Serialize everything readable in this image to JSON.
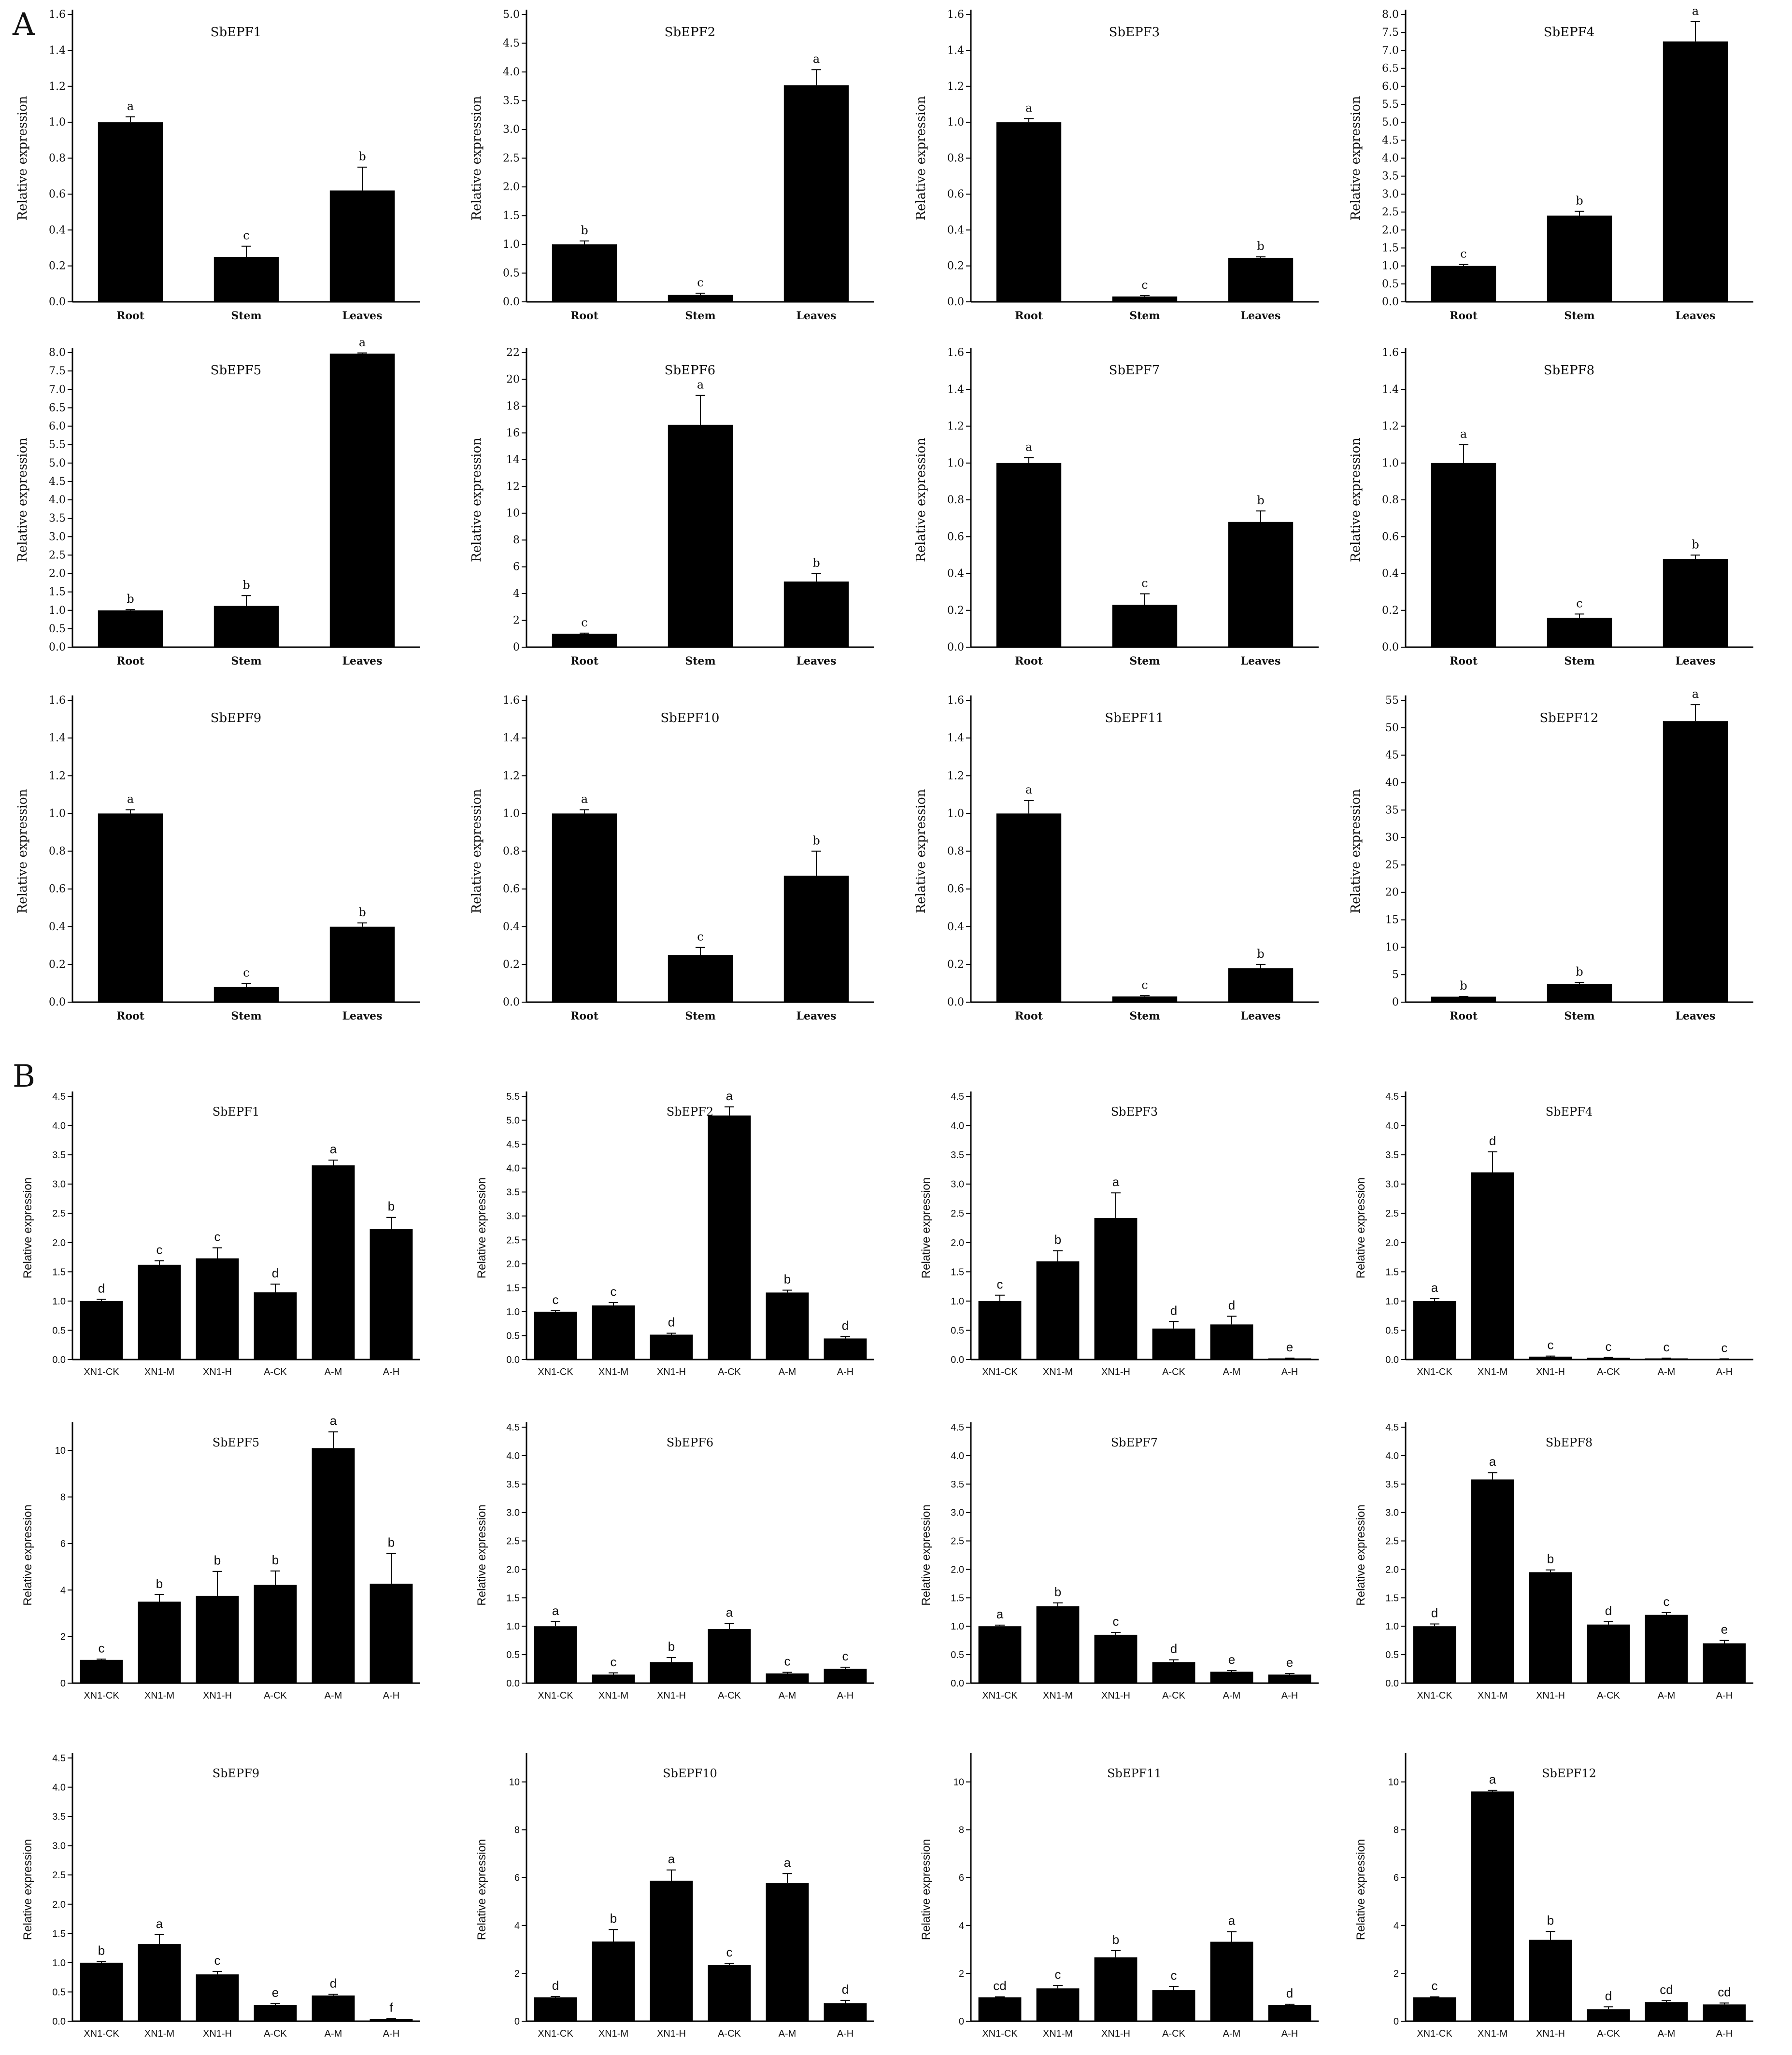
{
  "panels": {
    "a": "A",
    "b": "B"
  },
  "colors": {
    "bar": "#000000",
    "axis": "#000000",
    "text": "#111111"
  },
  "chart_data": [
    {
      "type": "bar",
      "title": "SbEPF1",
      "ylabel": "Relative expression",
      "categories": [
        "Root",
        "Stem",
        "Leaves"
      ],
      "values": [
        1.0,
        0.25,
        0.62
      ],
      "errors": [
        0.03,
        0.06,
        0.13
      ],
      "labels": [
        "a",
        "c",
        "b"
      ],
      "ylim": [
        0,
        1.6
      ],
      "yticks": [
        "0.0",
        "0.2",
        "0.4",
        "0.6",
        "0.8",
        "1.0",
        "1.2",
        "1.4",
        "1.6"
      ]
    },
    {
      "type": "bar",
      "title": "SbEPF2",
      "ylabel": "Relative expression",
      "categories": [
        "Root",
        "Stem",
        "Leaves"
      ],
      "values": [
        1.0,
        0.12,
        3.77
      ],
      "errors": [
        0.06,
        0.03,
        0.27
      ],
      "labels": [
        "b",
        "c",
        "a"
      ],
      "ylim": [
        0,
        5.0
      ],
      "yticks": [
        "0.0",
        "0.5",
        "1.0",
        "1.5",
        "2.0",
        "2.5",
        "3.0",
        "3.5",
        "4.0",
        "4.5",
        "5.0"
      ]
    },
    {
      "type": "bar",
      "title": "SbEPF3",
      "ylabel": "Relative expression",
      "categories": [
        "Root",
        "Stem",
        "Leaves"
      ],
      "values": [
        1.0,
        0.03,
        0.245
      ],
      "errors": [
        0.02,
        0.005,
        0.006
      ],
      "labels": [
        "a",
        "c",
        "b"
      ],
      "ylim": [
        0,
        1.6
      ],
      "yticks": [
        "0.0",
        "0.2",
        "0.4",
        "0.6",
        "0.8",
        "1.0",
        "1.2",
        "1.4",
        "1.6"
      ]
    },
    {
      "type": "bar",
      "title": "SbEPF4",
      "ylabel": "Relative expression",
      "categories": [
        "Root",
        "Stem",
        "Leaves"
      ],
      "values": [
        1.0,
        2.4,
        7.25
      ],
      "errors": [
        0.04,
        0.12,
        0.55
      ],
      "labels": [
        "c",
        "b",
        "a"
      ],
      "ylim": [
        0,
        8.0
      ],
      "yticks": [
        "0.0",
        "0.5",
        "1.0",
        "1.5",
        "2.0",
        "2.5",
        "3.0",
        "3.5",
        "4.0",
        "4.5",
        "5.0",
        "5.5",
        "6.0",
        "6.5",
        "7.0",
        "7.5",
        "8.0"
      ]
    },
    {
      "type": "bar",
      "title": "SbEPF5",
      "ylabel": "Relative expression",
      "categories": [
        "Root",
        "Stem",
        "Leaves"
      ],
      "values": [
        1.0,
        1.12,
        7.97
      ],
      "errors": [
        0.02,
        0.28,
        0.02
      ],
      "labels": [
        "b",
        "b",
        "a"
      ],
      "ylim": [
        0,
        8.0
      ],
      "yticks": [
        "0.0",
        "0.5",
        "1.0",
        "1.5",
        "2.0",
        "2.5",
        "3.0",
        "3.5",
        "4.0",
        "4.5",
        "5.0",
        "5.5",
        "6.0",
        "6.5",
        "7.0",
        "7.5",
        "8.0"
      ]
    },
    {
      "type": "bar",
      "title": "SbEPF6",
      "ylabel": "Relative expression",
      "categories": [
        "Root",
        "Stem",
        "Leaves"
      ],
      "values": [
        1.0,
        16.6,
        4.9
      ],
      "errors": [
        0.05,
        2.2,
        0.6
      ],
      "labels": [
        "c",
        "a",
        "b"
      ],
      "ylim": [
        0,
        22
      ],
      "yticks": [
        "0",
        "2",
        "4",
        "6",
        "8",
        "10",
        "12",
        "14",
        "16",
        "18",
        "20",
        "22"
      ]
    },
    {
      "type": "bar",
      "title": "SbEPF7",
      "ylabel": "Relative expression",
      "categories": [
        "Root",
        "Stem",
        "Leaves"
      ],
      "values": [
        1.0,
        0.23,
        0.68
      ],
      "errors": [
        0.03,
        0.06,
        0.06
      ],
      "labels": [
        "a",
        "c",
        "b"
      ],
      "ylim": [
        0,
        1.6
      ],
      "yticks": [
        "0.0",
        "0.2",
        "0.4",
        "0.6",
        "0.8",
        "1.0",
        "1.2",
        "1.4",
        "1.6"
      ]
    },
    {
      "type": "bar",
      "title": "SbEPF8",
      "ylabel": "Relative expression",
      "categories": [
        "Root",
        "Stem",
        "Leaves"
      ],
      "values": [
        1.0,
        0.16,
        0.48
      ],
      "errors": [
        0.1,
        0.02,
        0.02
      ],
      "labels": [
        "a",
        "c",
        "b"
      ],
      "ylim": [
        0,
        1.6
      ],
      "yticks": [
        "0.0",
        "0.2",
        "0.4",
        "0.6",
        "0.8",
        "1.0",
        "1.2",
        "1.4",
        "1.6"
      ]
    },
    {
      "type": "bar",
      "title": "SbEPF9",
      "ylabel": "Relative expression",
      "categories": [
        "Root",
        "Stem",
        "Leaves"
      ],
      "values": [
        1.0,
        0.08,
        0.4
      ],
      "errors": [
        0.02,
        0.02,
        0.02
      ],
      "labels": [
        "a",
        "c",
        "b"
      ],
      "ylim": [
        0,
        1.6
      ],
      "yticks": [
        "0.0",
        "0.2",
        "0.4",
        "0.6",
        "0.8",
        "1.0",
        "1.2",
        "1.4",
        "1.6"
      ]
    },
    {
      "type": "bar",
      "title": "SbEPF10",
      "ylabel": "Relative expression",
      "categories": [
        "Root",
        "Stem",
        "Leaves"
      ],
      "values": [
        1.0,
        0.25,
        0.67
      ],
      "errors": [
        0.02,
        0.04,
        0.13
      ],
      "labels": [
        "a",
        "c",
        "b"
      ],
      "ylim": [
        0,
        1.6
      ],
      "yticks": [
        "0.0",
        "0.2",
        "0.4",
        "0.6",
        "0.8",
        "1.0",
        "1.2",
        "1.4",
        "1.6"
      ]
    },
    {
      "type": "bar",
      "title": "SbEPF11",
      "ylabel": "Relative expression",
      "categories": [
        "Root",
        "Stem",
        "Leaves"
      ],
      "values": [
        1.0,
        0.03,
        0.18
      ],
      "errors": [
        0.07,
        0.005,
        0.02
      ],
      "labels": [
        "a",
        "c",
        "b"
      ],
      "ylim": [
        0,
        1.6
      ],
      "yticks": [
        "0.0",
        "0.2",
        "0.4",
        "0.6",
        "0.8",
        "1.0",
        "1.2",
        "1.4",
        "1.6"
      ]
    },
    {
      "type": "bar",
      "title": "SbEPF12",
      "ylabel": "Relative expression",
      "categories": [
        "Root",
        "Stem",
        "Leaves"
      ],
      "values": [
        1.0,
        3.3,
        51.2
      ],
      "errors": [
        0.05,
        0.3,
        3.0
      ],
      "labels": [
        "b",
        "b",
        "a"
      ],
      "ylim": [
        0,
        55
      ],
      "yticks": [
        "0",
        "5",
        "10",
        "15",
        "20",
        "25",
        "30",
        "35",
        "40",
        "45",
        "50",
        "55"
      ]
    },
    {
      "type": "bar",
      "title": "SbEPF1",
      "ylabel": "Relative expression",
      "categories": [
        "XN1-CK",
        "XN1-M",
        "XN1-H",
        "A-CK",
        "A-M",
        "A-H"
      ],
      "values": [
        1.0,
        1.62,
        1.73,
        1.15,
        3.32,
        2.23
      ],
      "errors": [
        0.03,
        0.07,
        0.18,
        0.14,
        0.09,
        0.2
      ],
      "labels": [
        "d",
        "c",
        "c",
        "d",
        "a",
        "b"
      ],
      "ylim": [
        0,
        4.5
      ],
      "yticks": [
        "0.0",
        "0.5",
        "1.0",
        "1.5",
        "2.0",
        "2.5",
        "3.0",
        "3.5",
        "4.0",
        "4.5"
      ]
    },
    {
      "type": "bar",
      "title": "SbEPF2",
      "ylabel": "Relative expression",
      "categories": [
        "XN1-CK",
        "XN1-M",
        "XN1-H",
        "A-CK",
        "A-M",
        "A-H"
      ],
      "values": [
        1.0,
        1.13,
        0.52,
        5.1,
        1.4,
        0.44
      ],
      "errors": [
        0.02,
        0.06,
        0.03,
        0.18,
        0.05,
        0.04
      ],
      "labels": [
        "c",
        "c",
        "d",
        "a",
        "b",
        "d"
      ],
      "ylim": [
        0,
        5.5
      ],
      "yticks": [
        "0.0",
        "0.5",
        "1.0",
        "1.5",
        "2.0",
        "2.5",
        "3.0",
        "3.5",
        "4.0",
        "4.5",
        "5.0",
        "5.5"
      ]
    },
    {
      "type": "bar",
      "title": "SbEPF3",
      "ylabel": "Relative expression",
      "categories": [
        "XN1-CK",
        "XN1-M",
        "XN1-H",
        "A-CK",
        "A-M",
        "A-H"
      ],
      "values": [
        1.0,
        1.68,
        2.42,
        0.53,
        0.6,
        0.02
      ],
      "errors": [
        0.1,
        0.18,
        0.43,
        0.12,
        0.14,
        0.005
      ],
      "labels": [
        "c",
        "b",
        "a",
        "d",
        "d",
        "e"
      ],
      "ylim": [
        0,
        4.5
      ],
      "yticks": [
        "0.0",
        "0.5",
        "1.0",
        "1.5",
        "2.0",
        "2.5",
        "3.0",
        "3.5",
        "4.0",
        "4.5"
      ]
    },
    {
      "type": "bar",
      "title": "SbEPF4",
      "ylabel": "Relative expression",
      "categories": [
        "XN1-CK",
        "XN1-M",
        "XN1-H",
        "A-CK",
        "A-M",
        "A-H"
      ],
      "values": [
        1.0,
        3.2,
        0.05,
        0.03,
        0.02,
        0.01
      ],
      "errors": [
        0.04,
        0.35,
        0.01,
        0.005,
        0.005,
        0.002
      ],
      "labels": [
        "a",
        "d",
        "c",
        "c",
        "c",
        "c"
      ],
      "ylim": [
        0,
        4.5
      ],
      "yticks": [
        "0.0",
        "0.5",
        "1.0",
        "1.5",
        "2.0",
        "2.5",
        "3.0",
        "3.5",
        "4.0",
        "4.5"
      ]
    },
    {
      "type": "bar",
      "title": "SbEPF5",
      "ylabel": "Relative expression",
      "categories": [
        "XN1-CK",
        "XN1-M",
        "XN1-H",
        "A-CK",
        "A-M",
        "A-H"
      ],
      "values": [
        1.0,
        3.5,
        3.75,
        4.22,
        10.1,
        4.27
      ],
      "errors": [
        0.03,
        0.3,
        1.05,
        0.6,
        0.7,
        1.3
      ],
      "labels": [
        "c",
        "b",
        "b",
        "b",
        "a",
        "b"
      ],
      "ylim": [
        0,
        11
      ],
      "yticks": [
        "0",
        "2",
        "4",
        "6",
        "8",
        "10"
      ]
    },
    {
      "type": "bar",
      "title": "SbEPF6",
      "ylabel": "Relative expression",
      "categories": [
        "XN1-CK",
        "XN1-M",
        "XN1-H",
        "A-CK",
        "A-M",
        "A-H"
      ],
      "values": [
        1.0,
        0.15,
        0.37,
        0.95,
        0.17,
        0.25
      ],
      "errors": [
        0.08,
        0.03,
        0.08,
        0.1,
        0.02,
        0.03
      ],
      "labels": [
        "a",
        "c",
        "b",
        "a",
        "c",
        "c"
      ],
      "ylim": [
        0,
        4.5
      ],
      "yticks": [
        "0.0",
        "0.5",
        "1.0",
        "1.5",
        "2.0",
        "2.5",
        "3.0",
        "3.5",
        "4.0",
        "4.5"
      ]
    },
    {
      "type": "bar",
      "title": "SbEPF7",
      "ylabel": "Relative expression",
      "categories": [
        "XN1-CK",
        "XN1-M",
        "XN1-H",
        "A-CK",
        "A-M",
        "A-H"
      ],
      "values": [
        1.0,
        1.35,
        0.85,
        0.37,
        0.2,
        0.15
      ],
      "errors": [
        0.02,
        0.06,
        0.04,
        0.04,
        0.02,
        0.02
      ],
      "labels": [
        "a",
        "b",
        "c",
        "d",
        "e",
        "e"
      ],
      "ylim": [
        0,
        4.5
      ],
      "yticks": [
        "0.0",
        "0.5",
        "1.0",
        "1.5",
        "2.0",
        "2.5",
        "3.0",
        "3.5",
        "4.0",
        "4.5"
      ]
    },
    {
      "type": "bar",
      "title": "SbEPF8",
      "ylabel": "Relative expression",
      "categories": [
        "XN1-CK",
        "XN1-M",
        "XN1-H",
        "A-CK",
        "A-M",
        "A-H"
      ],
      "values": [
        1.0,
        3.58,
        1.95,
        1.03,
        1.2,
        0.7
      ],
      "errors": [
        0.04,
        0.12,
        0.04,
        0.05,
        0.04,
        0.05
      ],
      "labels": [
        "d",
        "a",
        "b",
        "d",
        "c",
        "e"
      ],
      "ylim": [
        0,
        4.5
      ],
      "yticks": [
        "0.0",
        "0.5",
        "1.0",
        "1.5",
        "2.0",
        "2.5",
        "3.0",
        "3.5",
        "4.0",
        "4.5"
      ]
    },
    {
      "type": "bar",
      "title": "SbEPF9",
      "ylabel": "Relative expression",
      "categories": [
        "XN1-CK",
        "XN1-M",
        "XN1-H",
        "A-CK",
        "A-M",
        "A-H"
      ],
      "values": [
        1.0,
        1.32,
        0.8,
        0.28,
        0.44,
        0.04
      ],
      "errors": [
        0.02,
        0.16,
        0.05,
        0.02,
        0.02,
        0.005
      ],
      "labels": [
        "b",
        "a",
        "c",
        "e",
        "d",
        "f"
      ],
      "ylim": [
        0,
        4.5
      ],
      "yticks": [
        "0.0",
        "0.5",
        "1.0",
        "1.5",
        "2.0",
        "2.5",
        "3.0",
        "3.5",
        "4.0",
        "4.5"
      ]
    },
    {
      "type": "bar",
      "title": "SbEPF10",
      "ylabel": "Relative expression",
      "categories": [
        "XN1-CK",
        "XN1-M",
        "XN1-H",
        "A-CK",
        "A-M",
        "A-H"
      ],
      "values": [
        1.0,
        3.33,
        5.87,
        2.34,
        5.77,
        0.75
      ],
      "errors": [
        0.03,
        0.5,
        0.45,
        0.08,
        0.4,
        0.12
      ],
      "labels": [
        "d",
        "b",
        "a",
        "c",
        "a",
        "d"
      ],
      "ylim": [
        0,
        11
      ],
      "yticks": [
        "0",
        "2",
        "4",
        "6",
        "8",
        "10"
      ]
    },
    {
      "type": "bar",
      "title": "SbEPF11",
      "ylabel": "Relative expression",
      "categories": [
        "XN1-CK",
        "XN1-M",
        "XN1-H",
        "A-CK",
        "A-M",
        "A-H"
      ],
      "values": [
        1.0,
        1.37,
        2.67,
        1.3,
        3.32,
        0.67
      ],
      "errors": [
        0.02,
        0.12,
        0.28,
        0.15,
        0.42,
        0.04
      ],
      "labels": [
        "cd",
        "c",
        "b",
        "c",
        "a",
        "d"
      ],
      "ylim": [
        0,
        11
      ],
      "yticks": [
        "0",
        "2",
        "4",
        "6",
        "8",
        "10"
      ]
    },
    {
      "type": "bar",
      "title": "SbEPF12",
      "ylabel": "Relative expression",
      "categories": [
        "XN1-CK",
        "XN1-M",
        "XN1-H",
        "A-CK",
        "A-M",
        "A-H"
      ],
      "values": [
        1.0,
        9.6,
        3.4,
        0.5,
        0.8,
        0.7
      ],
      "errors": [
        0.02,
        0.05,
        0.35,
        0.1,
        0.06,
        0.06
      ],
      "labels": [
        "c",
        "a",
        "b",
        "d",
        "cd",
        "cd"
      ],
      "ylim": [
        0,
        11
      ],
      "yticks": [
        "0",
        "2",
        "4",
        "6",
        "8",
        "10"
      ]
    }
  ]
}
